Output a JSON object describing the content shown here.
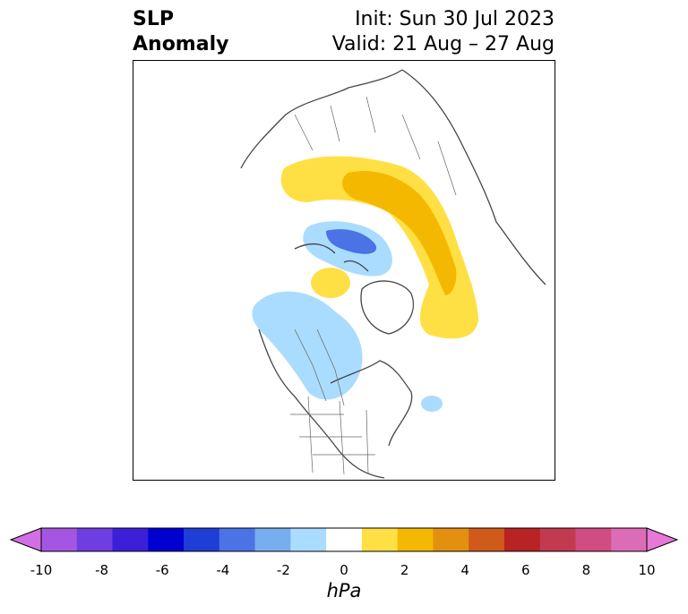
{
  "header": {
    "title_line1": "SLP",
    "title_line2": "Anomaly",
    "init": "Init: Sun 30 Jul 2023",
    "valid": "Valid: 21 Aug – 27 Aug"
  },
  "colorbar": {
    "unit": "hPa",
    "tick_labels": [
      "-10",
      "-8",
      "-6",
      "-4",
      "-2",
      "0",
      "2",
      "4",
      "6",
      "8",
      "10"
    ],
    "colors": [
      "#d36fe6",
      "#a556e0",
      "#6f3ee0",
      "#3c1fd6",
      "#0000d0",
      "#1f3ed6",
      "#4b73e5",
      "#77aef0",
      "#aadcff",
      "#ffffff",
      "#ffe044",
      "#f5b800",
      "#e3900f",
      "#cf5a1a",
      "#b82323",
      "#c23a4f",
      "#cf4d82",
      "#db6cb5",
      "#e778d6"
    ]
  },
  "map": {
    "anomaly_features": [
      {
        "label": "positive",
        "sign": "+",
        "level": 2
      },
      {
        "label": "positive",
        "sign": "+",
        "level": 4
      },
      {
        "label": "negative",
        "sign": "-",
        "level": -2
      },
      {
        "label": "negative",
        "sign": "-",
        "level": -4
      }
    ]
  }
}
